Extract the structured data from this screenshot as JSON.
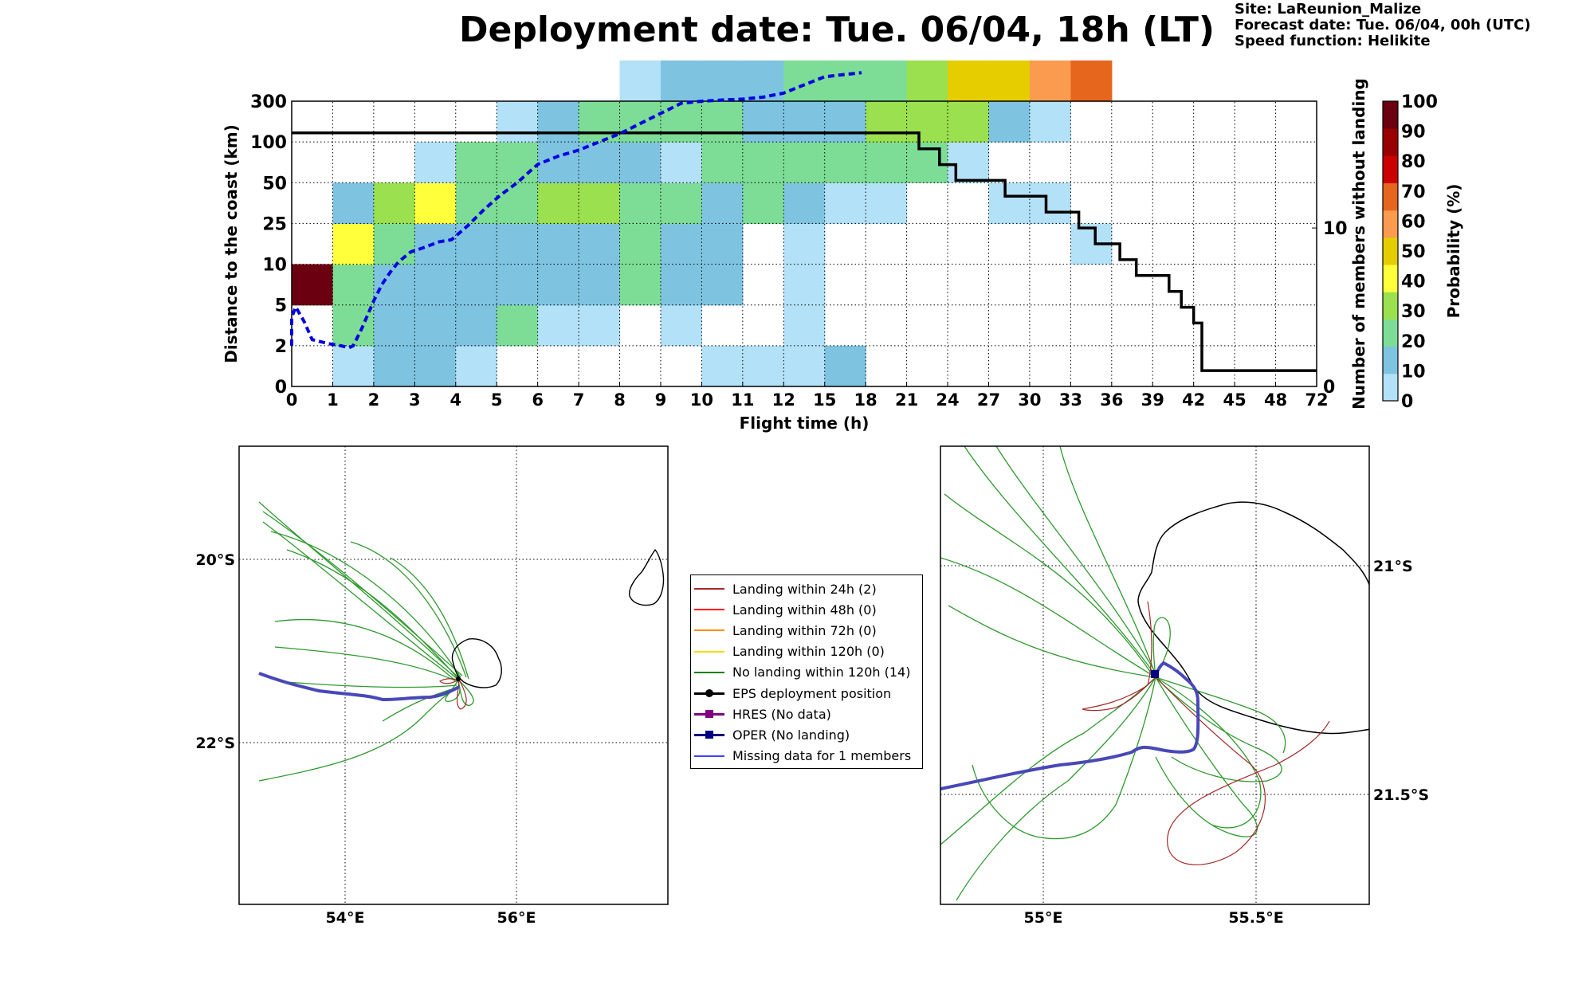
{
  "title": "Deployment date: Tue. 06/04, 18h (LT)",
  "meta": {
    "site": "Site: LaReunion_Malize",
    "forecast_date": "Forecast date: Tue. 06/04, 00h (UTC)",
    "speed_function": "Speed function: Helikite"
  },
  "chart_data": [
    {
      "type": "heatmap",
      "title": "",
      "xlabel": "Flight time (h)",
      "ylabel": "Distance to the coast (km)",
      "y2label": "Number of members without landing",
      "x_ticks": [
        "0",
        "1",
        "2",
        "3",
        "4",
        "5",
        "6",
        "7",
        "8",
        "9",
        "10",
        "11",
        "12",
        "15",
        "18",
        "21",
        "24",
        "27",
        "30",
        "33",
        "36",
        "39",
        "42",
        "45",
        "48",
        "72"
      ],
      "y_ticks": [
        "0",
        "2",
        "5",
        "10",
        "25",
        "50",
        "100",
        "300"
      ],
      "y2_ticks": [
        "0",
        "10"
      ],
      "y2lim": [
        0,
        18
      ],
      "colorbar": {
        "label": "Probability (%)",
        "ticks": [
          "0",
          "10",
          "20",
          "30",
          "40",
          "50",
          "60",
          "70",
          "80",
          "90",
          "100"
        ],
        "colors": [
          "#b3e1f7",
          "#7ec4e1",
          "#7ddd96",
          "#9be04e",
          "#ffff3c",
          "#e6cd00",
          "#fa9b50",
          "#e6661e",
          "#cd0000",
          "#9b0000",
          "#6b0010"
        ]
      },
      "cells": [
        {
          "x": 0,
          "y": 2,
          "bin": 10
        },
        {
          "x": 1,
          "y": 0,
          "bin": 0
        },
        {
          "x": 1,
          "y": 1,
          "bin": 2
        },
        {
          "x": 1,
          "y": 2,
          "bin": 2
        },
        {
          "x": 1,
          "y": 3,
          "bin": 4
        },
        {
          "x": 1,
          "y": 4,
          "bin": 1
        },
        {
          "x": 2,
          "y": 0,
          "bin": 1
        },
        {
          "x": 2,
          "y": 1,
          "bin": 1
        },
        {
          "x": 2,
          "y": 2,
          "bin": 1
        },
        {
          "x": 2,
          "y": 3,
          "bin": 2
        },
        {
          "x": 2,
          "y": 4,
          "bin": 3
        },
        {
          "x": 3,
          "y": 0,
          "bin": 1
        },
        {
          "x": 3,
          "y": 1,
          "bin": 1
        },
        {
          "x": 3,
          "y": 2,
          "bin": 1
        },
        {
          "x": 3,
          "y": 3,
          "bin": 1
        },
        {
          "x": 3,
          "y": 4,
          "bin": 4
        },
        {
          "x": 3,
          "y": 5,
          "bin": 0
        },
        {
          "x": 4,
          "y": 0,
          "bin": 0
        },
        {
          "x": 4,
          "y": 1,
          "bin": 1
        },
        {
          "x": 4,
          "y": 2,
          "bin": 1
        },
        {
          "x": 4,
          "y": 3,
          "bin": 1
        },
        {
          "x": 4,
          "y": 4,
          "bin": 2
        },
        {
          "x": 4,
          "y": 5,
          "bin": 2
        },
        {
          "x": 5,
          "y": 1,
          "bin": 2
        },
        {
          "x": 5,
          "y": 2,
          "bin": 1
        },
        {
          "x": 5,
          "y": 3,
          "bin": 1
        },
        {
          "x": 5,
          "y": 4,
          "bin": 2
        },
        {
          "x": 5,
          "y": 5,
          "bin": 2
        },
        {
          "x": 5,
          "y": 6,
          "bin": 0
        },
        {
          "x": 6,
          "y": 1,
          "bin": 0
        },
        {
          "x": 6,
          "y": 2,
          "bin": 1
        },
        {
          "x": 6,
          "y": 3,
          "bin": 1
        },
        {
          "x": 6,
          "y": 4,
          "bin": 3
        },
        {
          "x": 6,
          "y": 5,
          "bin": 1
        },
        {
          "x": 6,
          "y": 6,
          "bin": 1
        },
        {
          "x": 7,
          "y": 1,
          "bin": 0
        },
        {
          "x": 7,
          "y": 2,
          "bin": 1
        },
        {
          "x": 7,
          "y": 3,
          "bin": 1
        },
        {
          "x": 7,
          "y": 4,
          "bin": 3
        },
        {
          "x": 7,
          "y": 5,
          "bin": 1
        },
        {
          "x": 7,
          "y": 6,
          "bin": 2
        },
        {
          "x": 8,
          "y": 2,
          "bin": 2
        },
        {
          "x": 8,
          "y": 3,
          "bin": 2
        },
        {
          "x": 8,
          "y": 4,
          "bin": 2
        },
        {
          "x": 8,
          "y": 5,
          "bin": 1
        },
        {
          "x": 8,
          "y": 6,
          "bin": 2
        },
        {
          "x": 8,
          "y": 7,
          "bin": 0
        },
        {
          "x": 9,
          "y": 1,
          "bin": 0
        },
        {
          "x": 9,
          "y": 2,
          "bin": 1
        },
        {
          "x": 9,
          "y": 3,
          "bin": 1
        },
        {
          "x": 9,
          "y": 4,
          "bin": 2
        },
        {
          "x": 9,
          "y": 5,
          "bin": 0
        },
        {
          "x": 9,
          "y": 6,
          "bin": 2
        },
        {
          "x": 9,
          "y": 7,
          "bin": 1
        },
        {
          "x": 10,
          "y": 0,
          "bin": 0
        },
        {
          "x": 10,
          "y": 2,
          "bin": 1
        },
        {
          "x": 10,
          "y": 3,
          "bin": 1
        },
        {
          "x": 10,
          "y": 4,
          "bin": 1
        },
        {
          "x": 10,
          "y": 5,
          "bin": 2
        },
        {
          "x": 10,
          "y": 6,
          "bin": 2
        },
        {
          "x": 10,
          "y": 7,
          "bin": 1
        },
        {
          "x": 11,
          "y": 0,
          "bin": 0
        },
        {
          "x": 11,
          "y": 4,
          "bin": 2
        },
        {
          "x": 11,
          "y": 5,
          "bin": 2
        },
        {
          "x": 11,
          "y": 6,
          "bin": 1
        },
        {
          "x": 11,
          "y": 7,
          "bin": 1
        },
        {
          "x": 12,
          "y": 0,
          "bin": 0
        },
        {
          "x": 12,
          "y": 1,
          "bin": 0
        },
        {
          "x": 12,
          "y": 2,
          "bin": 0
        },
        {
          "x": 12,
          "y": 3,
          "bin": 0
        },
        {
          "x": 12,
          "y": 4,
          "bin": 1
        },
        {
          "x": 12,
          "y": 5,
          "bin": 2
        },
        {
          "x": 12,
          "y": 6,
          "bin": 1
        },
        {
          "x": 12,
          "y": 7,
          "bin": 2
        },
        {
          "x": 13,
          "y": 0,
          "bin": 1
        },
        {
          "x": 13,
          "y": 4,
          "bin": 0
        },
        {
          "x": 13,
          "y": 5,
          "bin": 2
        },
        {
          "x": 13,
          "y": 6,
          "bin": 1
        },
        {
          "x": 13,
          "y": 7,
          "bin": 2
        },
        {
          "x": 14,
          "y": 4,
          "bin": 0
        },
        {
          "x": 14,
          "y": 5,
          "bin": 2
        },
        {
          "x": 14,
          "y": 6,
          "bin": 3
        },
        {
          "x": 14,
          "y": 7,
          "bin": 2
        },
        {
          "x": 15,
          "y": 5,
          "bin": 2
        },
        {
          "x": 15,
          "y": 6,
          "bin": 3
        },
        {
          "x": 15,
          "y": 7,
          "bin": 3
        },
        {
          "x": 16,
          "y": 5,
          "bin": 0
        },
        {
          "x": 16,
          "y": 6,
          "bin": 3
        },
        {
          "x": 16,
          "y": 7,
          "bin": 5
        },
        {
          "x": 17,
          "y": 4,
          "bin": 0
        },
        {
          "x": 17,
          "y": 6,
          "bin": 1
        },
        {
          "x": 17,
          "y": 7,
          "bin": 5
        },
        {
          "x": 18,
          "y": 4,
          "bin": 0
        },
        {
          "x": 18,
          "y": 6,
          "bin": 0
        },
        {
          "x": 18,
          "y": 7,
          "bin": 6
        },
        {
          "x": 19,
          "y": 3,
          "bin": 0
        },
        {
          "x": 19,
          "y": 7,
          "bin": 7
        }
      ],
      "series": [
        {
          "name": "Number of members without landing",
          "points": [
            [
              0,
              16
            ],
            [
              15.3,
              16
            ],
            [
              15.3,
              15
            ],
            [
              15.8,
              15
            ],
            [
              15.8,
              14
            ],
            [
              16.2,
              14
            ],
            [
              16.2,
              13
            ],
            [
              17.4,
              13
            ],
            [
              17.4,
              12
            ],
            [
              18.4,
              12
            ],
            [
              18.4,
              11
            ],
            [
              19.2,
              11
            ],
            [
              19.2,
              10
            ],
            [
              19.6,
              10
            ],
            [
              19.6,
              9
            ],
            [
              20.2,
              9
            ],
            [
              20.2,
              8
            ],
            [
              20.6,
              8
            ],
            [
              20.6,
              7
            ],
            [
              21.4,
              7
            ],
            [
              21.4,
              6
            ],
            [
              21.7,
              6
            ],
            [
              21.7,
              5
            ],
            [
              22.0,
              5
            ],
            [
              22.0,
              4
            ],
            [
              22.2,
              4
            ],
            [
              22.2,
              1
            ],
            [
              25,
              1
            ]
          ]
        },
        {
          "name": "",
          "points": [
            [
              0.0,
              1.0
            ],
            [
              0.0,
              1.7
            ],
            [
              0.1,
              1.95
            ],
            [
              0.3,
              1.6
            ],
            [
              0.5,
              1.15
            ],
            [
              0.9,
              1.05
            ],
            [
              1.2,
              1.0
            ],
            [
              1.4,
              0.95
            ],
            [
              1.5,
              1.0
            ],
            [
              1.7,
              1.4
            ],
            [
              1.85,
              1.75
            ],
            [
              2.0,
              2.1
            ],
            [
              2.2,
              2.5
            ],
            [
              2.4,
              2.8
            ],
            [
              2.6,
              3.05
            ],
            [
              2.9,
              3.3
            ],
            [
              3.2,
              3.4
            ],
            [
              3.6,
              3.55
            ],
            [
              3.9,
              3.6
            ],
            [
              4.3,
              3.95
            ],
            [
              4.7,
              4.35
            ],
            [
              5.1,
              4.7
            ],
            [
              5.5,
              5.0
            ],
            [
              6.0,
              5.45
            ],
            [
              6.5,
              5.65
            ],
            [
              7.0,
              5.8
            ],
            [
              7.5,
              6.0
            ],
            [
              8.0,
              6.2
            ],
            [
              8.5,
              6.45
            ],
            [
              9.0,
              6.7
            ],
            [
              9.5,
              6.95
            ],
            [
              10.0,
              7.0
            ],
            [
              10.5,
              7.03
            ],
            [
              11.0,
              7.05
            ],
            [
              11.5,
              7.1
            ],
            [
              12.0,
              7.2
            ],
            [
              12.5,
              7.4
            ],
            [
              13.0,
              7.6
            ],
            [
              13.9,
              7.7
            ]
          ]
        }
      ]
    },
    {
      "type": "map",
      "title": "",
      "x_ticks": [
        "54°E",
        "56°E"
      ],
      "y_ticks": [
        "20°S",
        "22°S"
      ]
    },
    {
      "type": "map",
      "title": "",
      "x_ticks": [
        "55°E",
        "55.5°E"
      ],
      "y_ticks": [
        "21°S",
        "21.5°S"
      ]
    }
  ],
  "legend": [
    {
      "label": "Landing within 24h (2)",
      "color": "#a52a2a",
      "marker": ""
    },
    {
      "label": "Landing within 48h (0)",
      "color": "#ff0000",
      "marker": ""
    },
    {
      "label": "Landing within 72h (0)",
      "color": "#ff8c00",
      "marker": ""
    },
    {
      "label": "Landing within 120h (0)",
      "color": "#ffd700",
      "marker": ""
    },
    {
      "label": "No landing within 120h (14)",
      "color": "#008000",
      "marker": ""
    },
    {
      "label": "EPS deployment position",
      "color": "#000000",
      "marker": "circle"
    },
    {
      "label": "HRES (No data)",
      "color": "#800080",
      "marker": "square"
    },
    {
      "label": "OPER (No landing)",
      "color": "#000080",
      "marker": "square"
    },
    {
      "label": "Missing data for 1 members",
      "color": "#4040ff",
      "marker": ""
    }
  ]
}
